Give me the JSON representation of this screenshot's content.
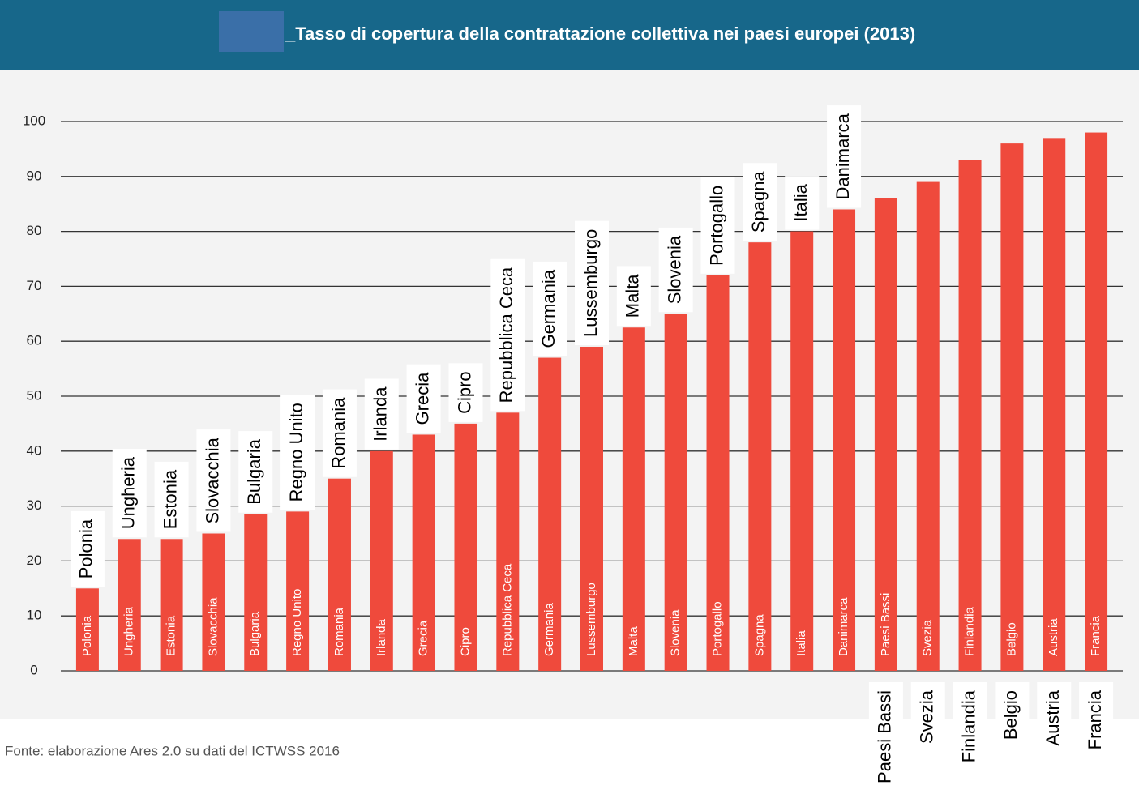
{
  "chart_data": {
    "type": "bar",
    "title": "_Tasso di copertura della contrattazione collettiva nei paesi europei (2013)",
    "source": "Fonte: elaborazione Ares 2.0 su dati del ICTWSS 2016",
    "categories": [
      "Polonia",
      "Ungheria",
      "Estonia",
      "Slovacchia",
      "Bulgaria",
      "Regno Unito",
      "Romania",
      "Irlanda",
      "Grecia",
      "Cipro",
      "Repubblica Ceca",
      "Germania",
      "Lussemburgo",
      "Malta",
      "Slovenia",
      "Portogallo",
      "Spagna",
      "Italia",
      "Danimarca",
      "Paesi Bassi",
      "Svezia",
      "Finlandia",
      "Belgio",
      "Austria",
      "Francia"
    ],
    "values": [
      15,
      24,
      24,
      25,
      28.5,
      29,
      35,
      40,
      43,
      45,
      47,
      57,
      59,
      62.5,
      65,
      72,
      78,
      80,
      84,
      86,
      89,
      93,
      96,
      97,
      98
    ],
    "color": "#ef4a3c",
    "ylim": [
      0,
      100
    ],
    "yticks": [
      0,
      10,
      20,
      30,
      40,
      50,
      60,
      70,
      80,
      90,
      100
    ],
    "grid": true
  }
}
